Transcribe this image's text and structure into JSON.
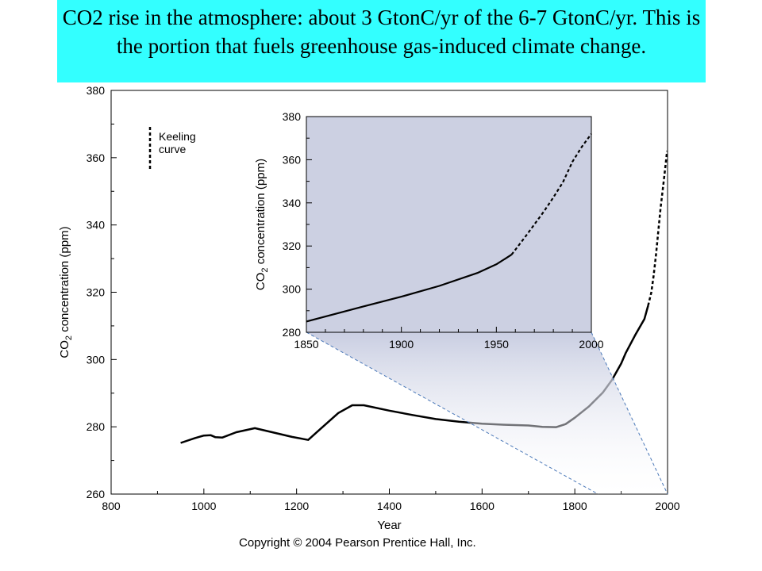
{
  "slide_title": "CO2 rise in the atmosphere: about 3 GtonC/yr of the 6-7 GtonC/yr.  This is the portion that fuels greenhouse gas-induced climate change.",
  "copyright": "Copyright © 2004 Pearson Prentice Hall, Inc.",
  "colors": {
    "title_band": "#33ffff",
    "inset_fill": "#ccd0e2",
    "zoom_guide": "#4a78b8",
    "curve": "#000000"
  },
  "chart_data": [
    {
      "type": "line",
      "xlabel": "Year",
      "ylabel": "CO2 concentration (ppm)",
      "xlim": [
        800,
        2000
      ],
      "ylim": [
        260,
        380
      ],
      "xticks": [
        800,
        1000,
        1200,
        1400,
        1600,
        1800,
        2000
      ],
      "yticks": [
        260,
        280,
        300,
        320,
        340,
        360,
        380
      ],
      "legend": {
        "label": "Keeling curve",
        "style": "dashed",
        "placement": "top-left"
      },
      "series": [
        {
          "style": "solid",
          "x": [
            950,
            980,
            1000,
            1015,
            1025,
            1040,
            1070,
            1110,
            1150,
            1190,
            1225,
            1250,
            1290,
            1320,
            1345,
            1400,
            1450,
            1500,
            1550,
            1600,
            1650,
            1700,
            1730,
            1760,
            1780,
            1800,
            1830,
            1860,
            1880,
            1900,
            1910,
            1930,
            1950,
            1958
          ],
          "y": [
            275.2,
            276.6,
            277.4,
            277.5,
            276.9,
            276.8,
            278.4,
            279.6,
            278.3,
            277.0,
            276.1,
            279.2,
            284.1,
            286.4,
            286.4,
            284.8,
            283.5,
            282.3,
            281.5,
            280.9,
            280.6,
            280.4,
            280.0,
            279.9,
            280.8,
            282.7,
            286.0,
            290.1,
            293.9,
            298.8,
            302.0,
            307.2,
            312.0,
            316.0
          ]
        },
        {
          "name": "Keeling curve",
          "style": "dashed",
          "x": [
            1958,
            1965,
            1970,
            1975,
            1980,
            1985,
            1990,
            1995,
            1999
          ],
          "y": [
            316.0,
            320.0,
            325.0,
            331.0,
            338.0,
            345.0,
            351.0,
            357.0,
            362.0
          ]
        }
      ]
    },
    {
      "type": "line",
      "xlabel": "",
      "ylabel": "CO2 concentration (ppm)",
      "xlim": [
        1850,
        2000
      ],
      "ylim": [
        280,
        380
      ],
      "xticks": [
        1850,
        1900,
        1950,
        2000
      ],
      "yticks": [
        280,
        300,
        320,
        340,
        360,
        380
      ],
      "series": [
        {
          "style": "solid",
          "x": [
            1850,
            1880,
            1900,
            1920,
            1940,
            1950,
            1958
          ],
          "y": [
            285.0,
            292.0,
            296.5,
            301.5,
            307.5,
            311.5,
            316.0
          ]
        },
        {
          "name": "Keeling curve",
          "style": "dashed",
          "x": [
            1958,
            1965,
            1970,
            1975,
            1980,
            1985,
            1990,
            1995,
            2000
          ],
          "y": [
            316.0,
            324.0,
            330.0,
            336.0,
            342.5,
            349.5,
            359.0,
            366.0,
            372.0
          ]
        }
      ]
    }
  ]
}
